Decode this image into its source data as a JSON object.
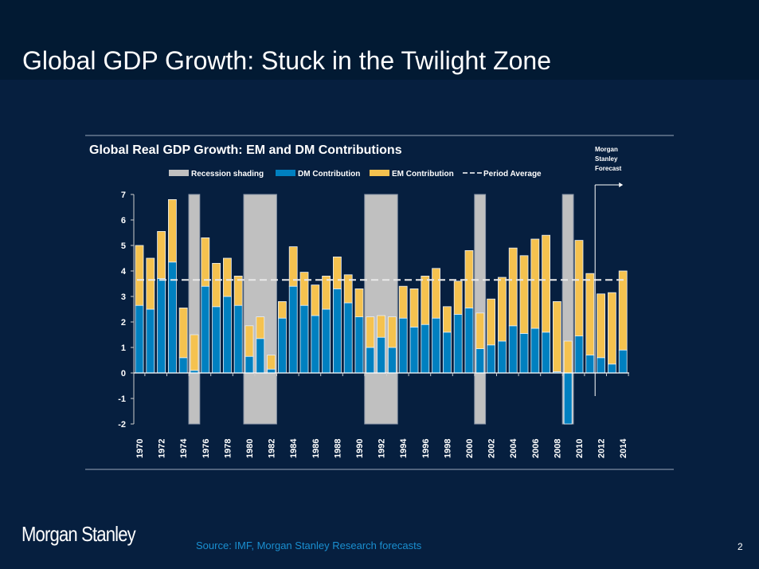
{
  "slide": {
    "title": "Global GDP Growth: Stuck in the Twilight Zone",
    "logo": "Morgan Stanley",
    "source": "Source: IMF, Morgan Stanley Research forecasts",
    "page": "2"
  },
  "chart_data": {
    "type": "bar",
    "title": "Global Real GDP Growth: EM and DM Contributions",
    "annotation": [
      "Morgan",
      "Stanley",
      "Forecast"
    ],
    "legend": [
      "Recession shading",
      "DM Contribution",
      "EM Contribution",
      "Period Average"
    ],
    "legend_position": "top",
    "ylim": [
      -2,
      7
    ],
    "yticks": [
      7,
      6,
      5,
      4,
      3,
      2,
      1,
      0,
      -1,
      -2
    ],
    "years": [
      1970,
      1971,
      1972,
      1973,
      1974,
      1975,
      1976,
      1977,
      1978,
      1979,
      1980,
      1981,
      1982,
      1983,
      1984,
      1985,
      1986,
      1987,
      1988,
      1989,
      1990,
      1991,
      1992,
      1993,
      1994,
      1995,
      1996,
      1997,
      1998,
      1999,
      2000,
      2001,
      2002,
      2003,
      2004,
      2005,
      2006,
      2007,
      2008,
      2009,
      2010,
      2011,
      2012,
      2013,
      2014
    ],
    "xtick_labels": [
      "1970",
      "1972",
      "1974",
      "1976",
      "1978",
      "1980",
      "1982",
      "1984",
      "1986",
      "1988",
      "1990",
      "1992",
      "1994",
      "1996",
      "1998",
      "2000",
      "2002",
      "2004",
      "2006",
      "2008",
      "2010",
      "2012",
      "2014"
    ],
    "series": [
      {
        "name": "DM Contribution",
        "color": "#0080c0",
        "values": [
          2.65,
          2.5,
          3.7,
          4.35,
          0.6,
          0.1,
          3.4,
          2.6,
          3.0,
          2.65,
          0.65,
          1.35,
          0.15,
          2.15,
          3.4,
          2.65,
          2.25,
          2.5,
          3.3,
          2.75,
          2.2,
          1.0,
          1.4,
          1.0,
          2.15,
          1.8,
          1.9,
          2.15,
          1.6,
          2.3,
          2.55,
          0.95,
          1.1,
          1.25,
          1.85,
          1.55,
          1.75,
          1.6,
          0.05,
          -2.0,
          1.45,
          0.7,
          0.6,
          0.35,
          0.9
        ]
      },
      {
        "name": "EM Contribution",
        "color": "#f5c24f",
        "values": [
          2.35,
          2.0,
          1.85,
          2.45,
          1.95,
          1.4,
          1.9,
          1.7,
          1.5,
          1.15,
          1.2,
          0.85,
          0.55,
          0.65,
          1.55,
          1.3,
          1.2,
          1.3,
          1.25,
          1.1,
          1.1,
          1.2,
          0.85,
          1.2,
          1.25,
          1.5,
          1.9,
          1.95,
          1.0,
          1.3,
          2.25,
          1.4,
          1.8,
          2.5,
          3.05,
          3.05,
          3.5,
          3.8,
          2.75,
          1.25,
          3.75,
          3.2,
          2.5,
          2.8,
          3.1
        ]
      }
    ],
    "recessions": [
      [
        1975,
        1975
      ],
      [
        1980,
        1982
      ],
      [
        1991,
        1993
      ],
      [
        2001,
        2001
      ],
      [
        2009,
        2009
      ]
    ],
    "period_average": 3.65,
    "forecast_start": 2012
  }
}
